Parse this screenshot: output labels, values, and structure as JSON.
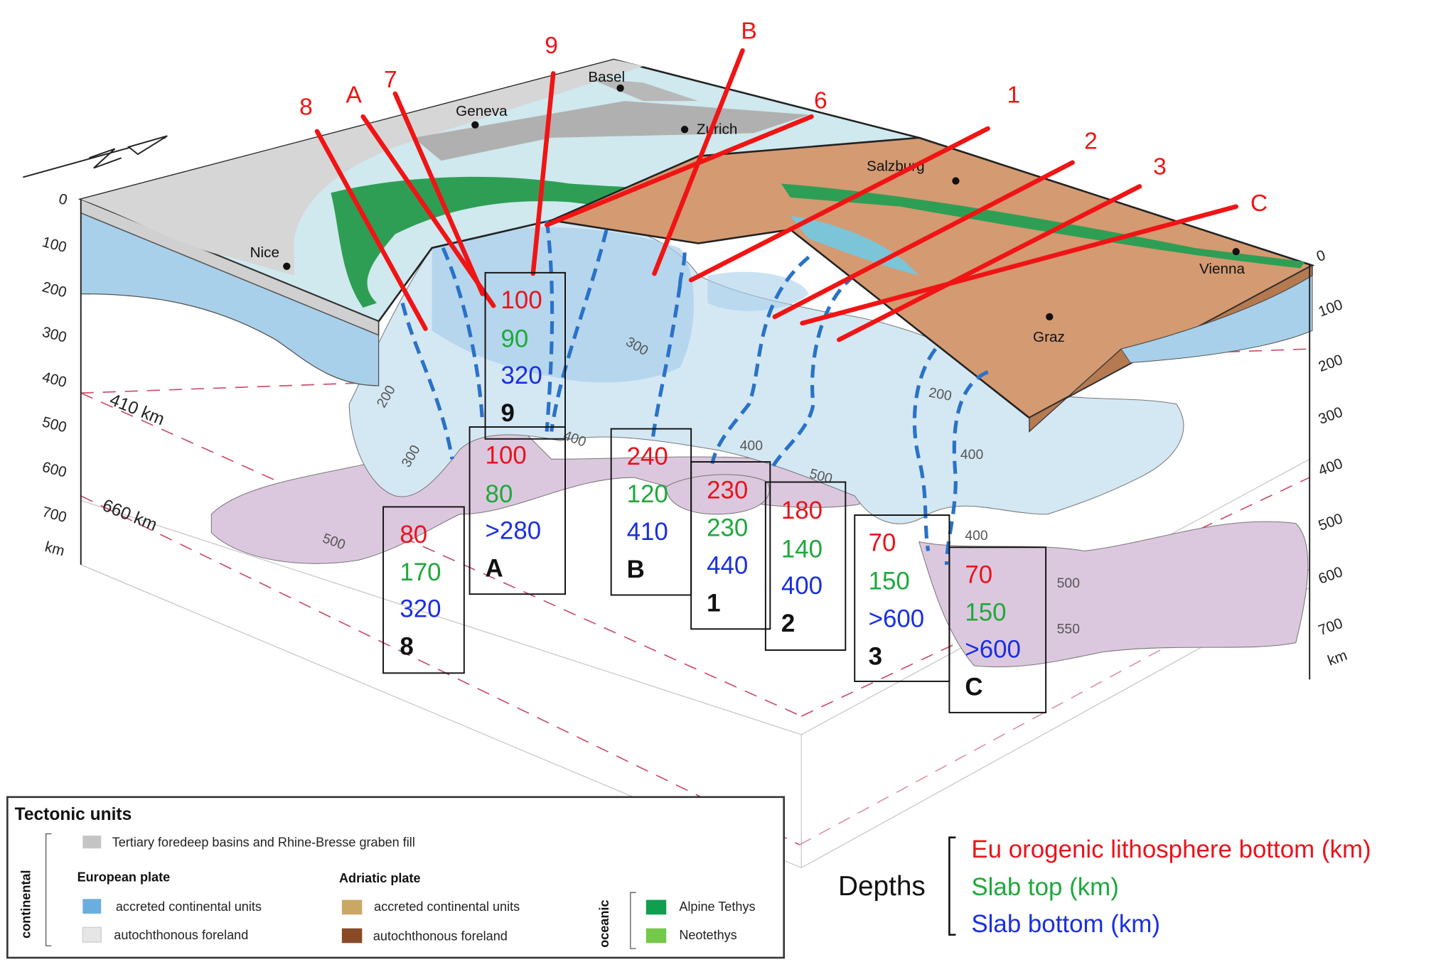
{
  "compass": {
    "label": "N",
    "icon": "north-arrow-icon"
  },
  "cities": [
    {
      "name": "Basel"
    },
    {
      "name": "Geneva"
    },
    {
      "name": "Zurich"
    },
    {
      "name": "Salzburg"
    },
    {
      "name": "Vienna"
    },
    {
      "name": "Nice"
    },
    {
      "name": "Graz"
    }
  ],
  "depth_axis_left": {
    "ticks": [
      "0",
      "100",
      "200",
      "300",
      "400",
      "500",
      "600",
      "700"
    ],
    "unit": "km"
  },
  "depth_axis_right": {
    "ticks": [
      "0",
      "100",
      "200",
      "300",
      "400",
      "500",
      "600",
      "700"
    ],
    "unit": "km"
  },
  "discontinuities": [
    "410 km",
    "660 km"
  ],
  "contour_labels": [
    "200",
    "300",
    "300",
    "400",
    "400",
    "500",
    "500",
    "200",
    "400",
    "500",
    "550",
    "400"
  ],
  "profiles": [
    {
      "label": "8",
      "red": "80",
      "green": "170",
      "blue": "320"
    },
    {
      "label": "A",
      "red": "100",
      "green": "80",
      "blue": ">280"
    },
    {
      "label": "9",
      "red": "100",
      "green": "90",
      "blue": "320"
    },
    {
      "label": "B",
      "red": "240",
      "green": "120",
      "blue": "410"
    },
    {
      "label": "1",
      "red": "230",
      "green": "230",
      "blue": "440"
    },
    {
      "label": "2",
      "red": "180",
      "green": "140",
      "blue": "400"
    },
    {
      "label": "3",
      "red": "70",
      "green": "150",
      "blue": ">600"
    },
    {
      "label": "C",
      "red": "70",
      "green": "150",
      "blue": ">600"
    }
  ],
  "line_only_labels": [
    "7",
    "6"
  ],
  "depths_legend": {
    "title": "Depths",
    "items": [
      {
        "label": "Eu orogenic lithosphere bottom (km)",
        "color": "#e8141c"
      },
      {
        "label": "Slab top (km)",
        "color": "#1fa83c"
      },
      {
        "label": "Slab bottom (km)",
        "color": "#1a2fe0"
      }
    ]
  },
  "tectonic_legend": {
    "title": "Tectonic units",
    "continental_label": "continental",
    "oceanic_label": "oceanic",
    "tertiary": {
      "label": "Tertiary foredeep basins and Rhine-Bresse graben fill",
      "color": "#c4c4c4"
    },
    "european": {
      "title": "European plate",
      "items": [
        {
          "label": "accreted continental units",
          "color": "#6aaee0"
        },
        {
          "label": "autochthonous foreland",
          "color": "#e6e6e6"
        }
      ]
    },
    "adriatic": {
      "title": "Adriatic plate",
      "items": [
        {
          "label": "accreted continental units",
          "color": "#c9a866"
        },
        {
          "label": "autochthonous foreland",
          "color": "#8a4a26"
        }
      ]
    },
    "oceanic": {
      "items": [
        {
          "label": "Alpine Tethys",
          "color": "#119e4e"
        },
        {
          "label": "Neotethys",
          "color": "#74c94a"
        }
      ]
    }
  },
  "colors": {
    "profile_line": "#f01414",
    "slab_dash": "#2a72c8",
    "slab": "#c8e2f2",
    "deep_slab": "#d8c4dc",
    "adria": "#d49a72"
  }
}
